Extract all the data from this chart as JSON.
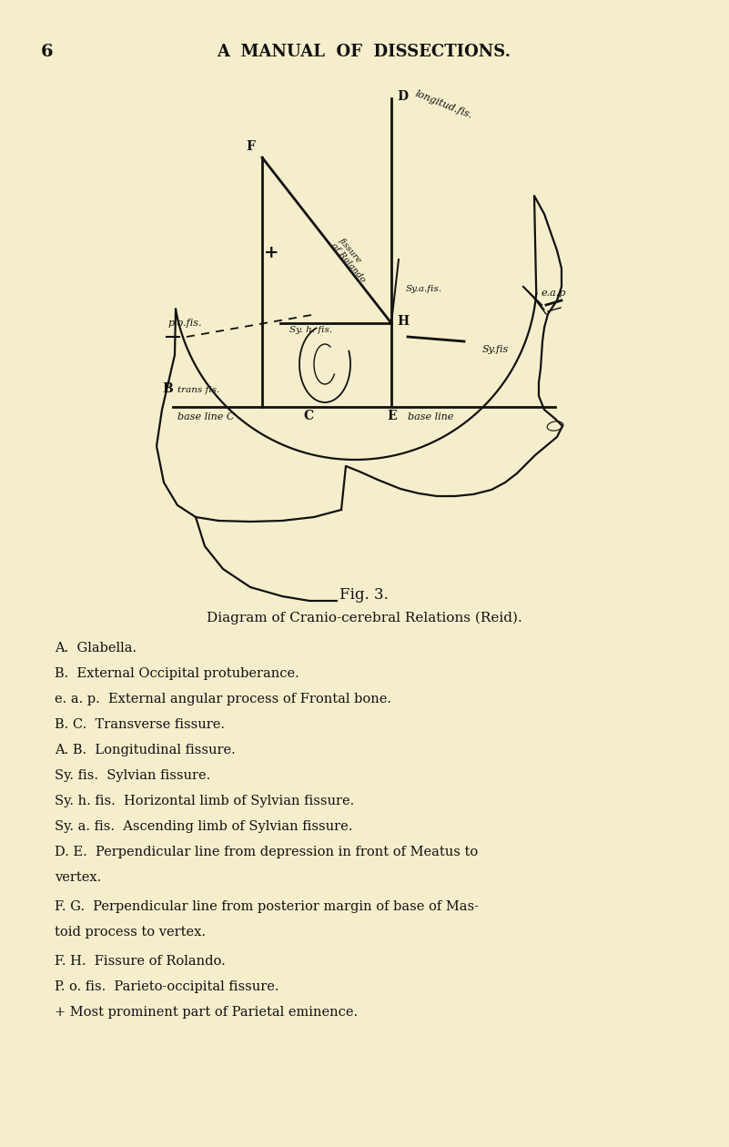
{
  "bg_color": "#f4eecc",
  "page_number": "6",
  "header_text": "A  MANUAL  OF  DISSECTIONS.",
  "fig_label": "Fig. 3.",
  "diagram_caption": "Diagram of Cranio-cerebral Relations (Reid).",
  "text_color": "#111111",
  "line_color": "#111111",
  "legend_items": [
    {
      "indent": 1,
      "text": "A.  Glabella."
    },
    {
      "indent": 1,
      "text": "B.  External Occipital protuberance."
    },
    {
      "indent": 1,
      "text": "e. a. p.  External angular process of Frontal bone."
    },
    {
      "indent": 1,
      "text": "B. C.  Transverse fissure."
    },
    {
      "indent": 1,
      "text": "A. B.  Longitudinal fissure."
    },
    {
      "indent": 1,
      "text": "Sy. fis.  Sylvian fissure."
    },
    {
      "indent": 1,
      "text": "Sy. h. fis.  Horizontal limb of Sylvian fissure."
    },
    {
      "indent": 1,
      "text": "Sy. a. fis.  Ascending limb of Sylvian fissure."
    },
    {
      "indent": 2,
      "text": "D. E.  Perpendicular line from depression in front of Meatus to\nvertex."
    },
    {
      "indent": 2,
      "text": "F. G.  Perpendicular line from posterior margin of base of Mas-\ntoid process to vertex."
    },
    {
      "indent": 1,
      "text": "F. H.  Fissure of Rolando."
    },
    {
      "indent": 1,
      "text": "P. o. fis.  Parieto-occipital fissure."
    },
    {
      "indent": 1,
      "text": "+ Most prominent part of Parietal eminence."
    }
  ]
}
